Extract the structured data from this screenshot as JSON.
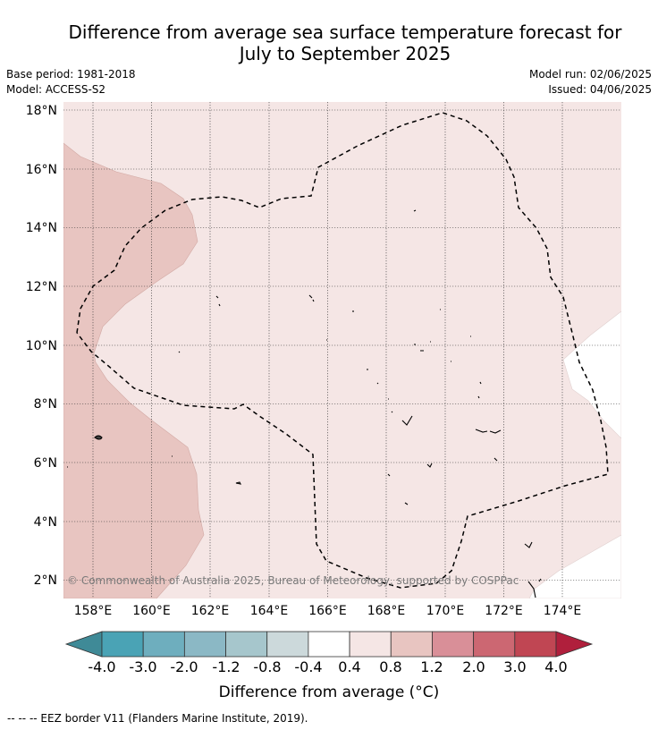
{
  "title_line1": "Difference from average sea surface temperature forecast for",
  "title_line2": "July to September 2025",
  "base_period": "Base period: 1981-2018",
  "model": "Model: ACCESS-S2",
  "model_run": "Model run: 02/06/2025",
  "issued": "Issued: 04/06/2025",
  "lat_labels": [
    "18°N",
    "16°N",
    "14°N",
    "12°N",
    "10°N",
    "8°N",
    "6°N",
    "4°N",
    "2°N"
  ],
  "lon_labels": [
    "158°E",
    "160°E",
    "162°E",
    "164°E",
    "166°E",
    "168°E",
    "170°E",
    "172°E",
    "174°E"
  ],
  "copyright": "© Commonwealth of Australia 2025, Bureau of Meteorology, supported by COSPPac",
  "colorbar": {
    "tick_labels": [
      "-4.0",
      "-3.0",
      "-2.0",
      "-1.2",
      "-0.8",
      "-0.4",
      "0.4",
      "0.8",
      "1.2",
      "2.0",
      "3.0",
      "4.0"
    ],
    "colors": [
      "#3f8a97",
      "#4aa3b5",
      "#6eaebe",
      "#8bb8c5",
      "#a6c6cc",
      "#ccd9db",
      "#ffffff",
      "#f5e6e5",
      "#e8c5c1",
      "#d98f98",
      "#cc6772",
      "#c04653",
      "#b01f3c"
    ],
    "title": "Difference from average (°C)"
  },
  "footer": "--  --  -- EEZ border V11 (Flanders Marine Institute, 2019)."
}
